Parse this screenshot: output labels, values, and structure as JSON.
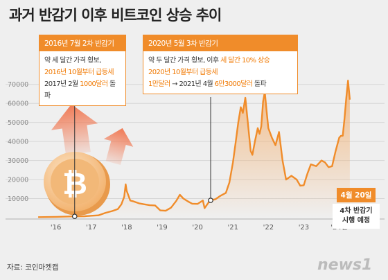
{
  "title": "과거 반감기 이후 비트코인 상승 추이",
  "source": "자료: 코인마켓캡",
  "logo": "news1",
  "callouts": [
    {
      "head": "2016년 7월 2차 반감기",
      "l1": "약 세 달간 가격 횡보,",
      "l2": "2016년 10월부터 급등세",
      "l3a": "2017년 2월 ",
      "l3b": "1000달러",
      "l3c": " 돌파"
    },
    {
      "head": "2020년 5월 3차 반감기",
      "l1a": "약 두 달간 가격 횡보, 이후 ",
      "l1b": "세 달간 10% 상승",
      "l2": "2020년 10월부터 급등세",
      "l3a": "1만달러",
      "l3b": " → 2021년 4월 ",
      "l3c": "6만3000달러",
      "l3d": " 돌파"
    }
  ],
  "note": {
    "date": "4월 20일",
    "l1": "4차 반감기",
    "l2": "시행 예정"
  },
  "colors": {
    "line": "#f08c2a",
    "accent": "#f07800"
  },
  "chart_data": {
    "type": "area",
    "title": "과거 반감기 이후 비트코인 상승 추이",
    "y_ticks": [
      10000,
      20000,
      30000,
      40000,
      50000,
      60000,
      70000
    ],
    "ylim": [
      0,
      75000
    ],
    "x_ticks": [
      "'16",
      "'17",
      "'18",
      "'19",
      "'20",
      "'21",
      "'22",
      "'23",
      "'24년"
    ],
    "x_tick_positions": [
      2016,
      2017,
      2018,
      2019,
      2020,
      2021,
      2022,
      2023,
      2024
    ],
    "xlim": [
      2015.4,
      2024.4
    ],
    "halving_markers": [
      2016.53,
      2020.37
    ],
    "series": [
      {
        "x": [
          2015.5,
          2016.0,
          2016.5,
          2016.8,
          2017.0,
          2017.2,
          2017.4,
          2017.6,
          2017.75,
          2017.85,
          2017.93,
          2017.97,
          2018.0,
          2018.1,
          2018.2,
          2018.35,
          2018.5,
          2018.65,
          2018.8,
          2018.95,
          2019.1,
          2019.25,
          2019.4,
          2019.5,
          2019.6,
          2019.75,
          2019.85,
          2020.0,
          2020.15,
          2020.2,
          2020.35,
          2020.5,
          2020.65,
          2020.8,
          2020.9,
          2021.0,
          2021.08,
          2021.15,
          2021.22,
          2021.28,
          2021.35,
          2021.42,
          2021.5,
          2021.55,
          2021.62,
          2021.7,
          2021.75,
          2021.8,
          2021.85,
          2021.9,
          2021.95,
          2022.0,
          2022.1,
          2022.2,
          2022.3,
          2022.4,
          2022.5,
          2022.65,
          2022.8,
          2022.9,
          2023.0,
          2023.1,
          2023.2,
          2023.35,
          2023.5,
          2023.6,
          2023.7,
          2023.8,
          2023.9,
          2024.0,
          2024.05,
          2024.1,
          2024.15,
          2024.2,
          2024.25,
          2024.3
        ],
        "values": [
          250,
          400,
          650,
          700,
          1000,
          1200,
          2500,
          3500,
          4500,
          7000,
          11000,
          17500,
          14000,
          9000,
          8500,
          7500,
          7000,
          6500,
          6400,
          3800,
          3600,
          5200,
          8800,
          12000,
          10000,
          8300,
          7300,
          7200,
          9000,
          5000,
          9000,
          9600,
          11500,
          13000,
          18500,
          29000,
          40000,
          50000,
          58000,
          55000,
          63000,
          50000,
          35000,
          33000,
          40000,
          47000,
          44000,
          48000,
          61000,
          66000,
          56000,
          47000,
          42000,
          38000,
          45000,
          30000,
          20000,
          22000,
          20000,
          16800,
          17000,
          23000,
          28000,
          27000,
          30000,
          29000,
          26500,
          27000,
          35000,
          42000,
          43000,
          43000,
          52000,
          63000,
          72000,
          62000
        ]
      }
    ]
  }
}
